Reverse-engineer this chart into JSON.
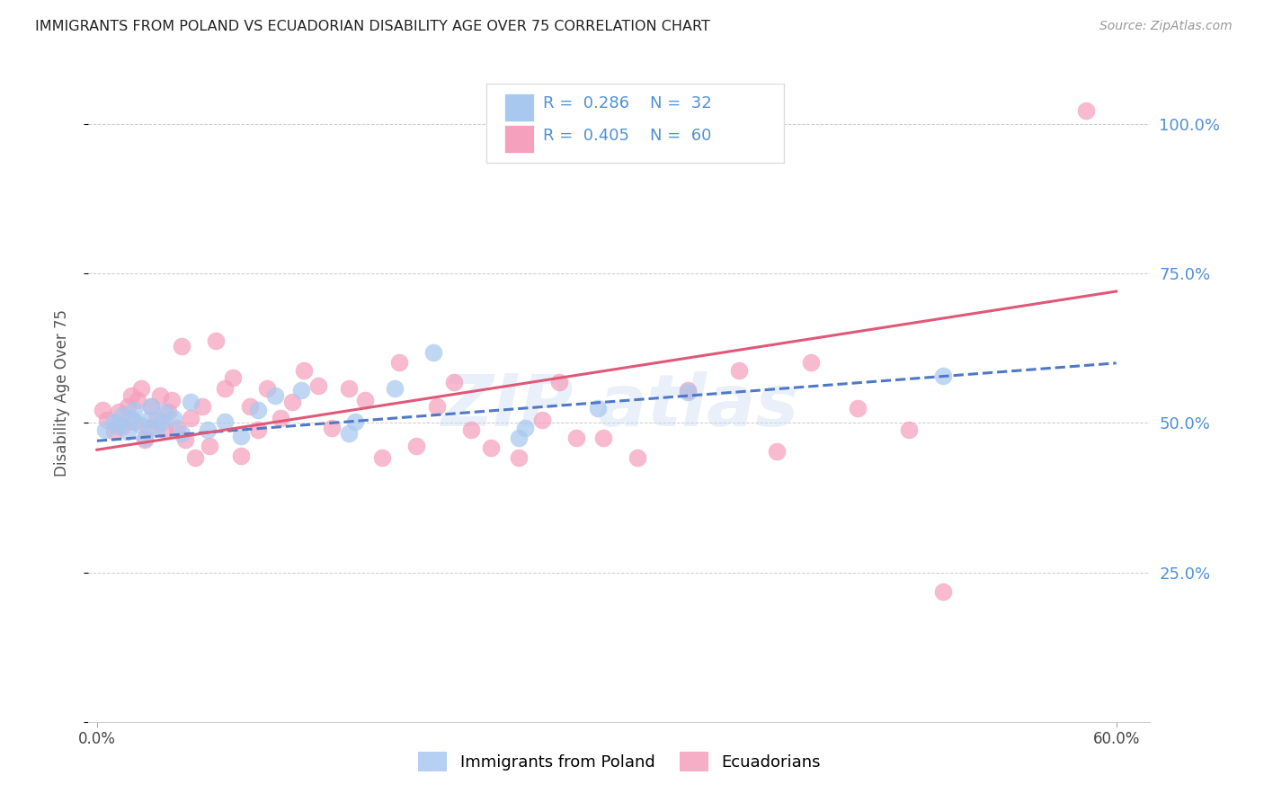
{
  "title": "IMMIGRANTS FROM POLAND VS ECUADORIAN DISABILITY AGE OVER 75 CORRELATION CHART",
  "source": "Source: ZipAtlas.com",
  "ylabel": "Disability Age Over 75",
  "xlim": [
    -0.005,
    0.62
  ],
  "ylim": [
    0.0,
    1.1
  ],
  "yticks": [
    0.0,
    0.25,
    0.5,
    0.75,
    1.0
  ],
  "ytick_labels": [
    "",
    "25.0%",
    "50.0%",
    "75.0%",
    "100.0%"
  ],
  "poland_color": "#a8c8f0",
  "ecuador_color": "#f5a0bc",
  "poland_line_color": "#5078c8",
  "ecuador_line_color": "#e05878",
  "right_tick_color": "#5090d8",
  "legend_text_color": "#5090d8",
  "poland_R": 0.286,
  "poland_N": 32,
  "ecuador_R": 0.405,
  "ecuador_N": 60,
  "poland_points_x": [
    0.005,
    0.01,
    0.012,
    0.015,
    0.018,
    0.02,
    0.022,
    0.025,
    0.028,
    0.03,
    0.032,
    0.035,
    0.038,
    0.04,
    0.045,
    0.05,
    0.055,
    0.065,
    0.075,
    0.085,
    0.095,
    0.105,
    0.12,
    0.148,
    0.152,
    0.175,
    0.198,
    0.248,
    0.252,
    0.295,
    0.348,
    0.498
  ],
  "poland_points_y": [
    0.488,
    0.502,
    0.495,
    0.512,
    0.485,
    0.508,
    0.522,
    0.498,
    0.475,
    0.505,
    0.528,
    0.492,
    0.502,
    0.518,
    0.508,
    0.482,
    0.535,
    0.488,
    0.502,
    0.478,
    0.522,
    0.545,
    0.555,
    0.482,
    0.502,
    0.558,
    0.618,
    0.475,
    0.492,
    0.525,
    0.552,
    0.578
  ],
  "ecuador_points_x": [
    0.003,
    0.006,
    0.01,
    0.013,
    0.015,
    0.018,
    0.02,
    0.022,
    0.024,
    0.026,
    0.028,
    0.03,
    0.032,
    0.035,
    0.037,
    0.04,
    0.042,
    0.044,
    0.047,
    0.05,
    0.052,
    0.055,
    0.058,
    0.062,
    0.066,
    0.07,
    0.075,
    0.08,
    0.085,
    0.09,
    0.095,
    0.1,
    0.108,
    0.115,
    0.122,
    0.13,
    0.138,
    0.148,
    0.158,
    0.168,
    0.178,
    0.188,
    0.2,
    0.21,
    0.22,
    0.232,
    0.248,
    0.262,
    0.272,
    0.282,
    0.298,
    0.318,
    0.348,
    0.378,
    0.4,
    0.42,
    0.448,
    0.478,
    0.498,
    0.582
  ],
  "ecuador_points_y": [
    0.522,
    0.505,
    0.485,
    0.518,
    0.495,
    0.528,
    0.545,
    0.502,
    0.538,
    0.558,
    0.472,
    0.492,
    0.528,
    0.505,
    0.545,
    0.488,
    0.518,
    0.538,
    0.492,
    0.628,
    0.472,
    0.508,
    0.442,
    0.528,
    0.462,
    0.638,
    0.558,
    0.575,
    0.445,
    0.528,
    0.488,
    0.558,
    0.508,
    0.535,
    0.588,
    0.562,
    0.492,
    0.558,
    0.538,
    0.442,
    0.602,
    0.462,
    0.528,
    0.568,
    0.488,
    0.458,
    0.442,
    0.505,
    0.568,
    0.475,
    0.475,
    0.442,
    0.555,
    0.588,
    0.452,
    0.602,
    0.525,
    0.488,
    0.218,
    1.022
  ],
  "poland_trend": [
    0.0,
    0.6,
    0.47,
    0.6
  ],
  "ecuador_trend": [
    0.0,
    0.6,
    0.455,
    0.72
  ]
}
